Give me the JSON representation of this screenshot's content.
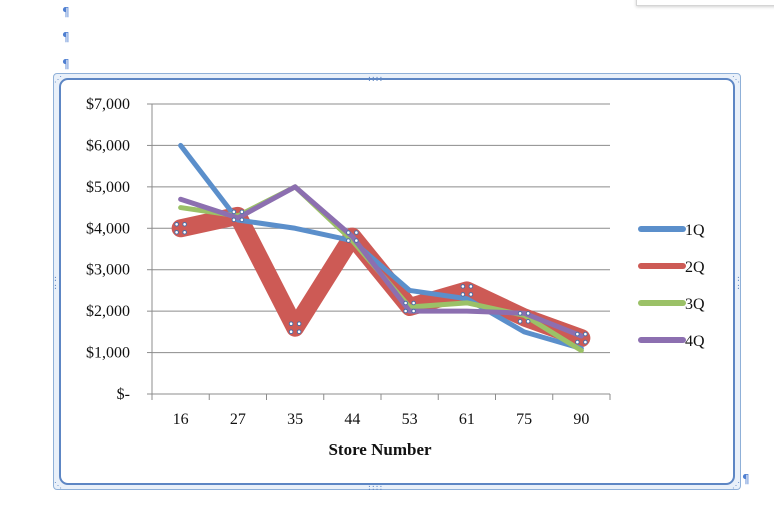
{
  "page": {
    "pilcrows": [
      "¶",
      "¶",
      "¶"
    ],
    "trailing_pilcrow": "¶"
  },
  "colors": {
    "1Q": "#5b8fcb",
    "2Q": "#cd5a55",
    "3Q": "#9bc167",
    "4Q": "#8c6fb0",
    "grid": "#8c8c8c",
    "frame": "#5d86c4"
  },
  "chart_data": {
    "type": "line",
    "categories": [
      "16",
      "27",
      "35",
      "44",
      "53",
      "61",
      "75",
      "90"
    ],
    "series": [
      {
        "name": "1Q",
        "values": [
          6000,
          4200,
          4000,
          3700,
          2500,
          2300,
          1500,
          1100
        ]
      },
      {
        "name": "2Q",
        "values": [
          4000,
          4300,
          1600,
          3800,
          2100,
          2500,
          1850,
          1350
        ]
      },
      {
        "name": "3Q",
        "values": [
          4500,
          4300,
          5000,
          3700,
          2100,
          2200,
          1900,
          1050
        ]
      },
      {
        "name": "4Q",
        "values": [
          4700,
          4250,
          5000,
          3800,
          2000,
          2000,
          1950,
          1400
        ]
      }
    ],
    "y_ticks": [
      0,
      1000,
      2000,
      3000,
      4000,
      5000,
      6000,
      7000
    ],
    "y_tick_labels": [
      "$-",
      "$1,000",
      "$2,000",
      "$3,000",
      "$4,000",
      "$5,000",
      "$6,000",
      "$7,000"
    ],
    "ylim": [
      0,
      7000
    ],
    "xlabel": "Store Number",
    "ylabel": "",
    "title": "",
    "grid": true,
    "legend": "right",
    "selected_series": "2Q"
  }
}
